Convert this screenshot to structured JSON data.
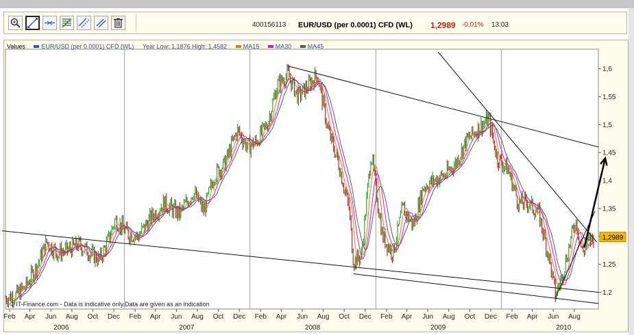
{
  "toolbar": {
    "tools": [
      {
        "name": "zoom-tool",
        "icon": "magnifier-icon"
      },
      {
        "name": "trendline-tool",
        "icon": "trendline-icon",
        "active": true
      },
      {
        "name": "horizontal-line-tool",
        "icon": "horizontal-line-icon"
      },
      {
        "name": "fibonacci-tool",
        "icon": "fibonacci-icon"
      },
      {
        "name": "channel-tool",
        "icon": "channel-icon"
      },
      {
        "name": "parallel-line-tool",
        "icon": "parallel-line-icon"
      },
      {
        "name": "delete-tool",
        "icon": "trash-icon"
      }
    ],
    "symbol_code": "400156113",
    "symbol_name": "EUR/USD (per 0.0001) CFD (WL)",
    "last_price": "1,2989",
    "change": "-0,01%",
    "time": "13:03"
  },
  "legend": {
    "values_label": "Values",
    "instrument": "EUR/USD (per 0.0001) CFD (WL)",
    "year_range": "Year Low: 1,1876 High: 1,4582",
    "ma15": "MA15",
    "ma30": "MA30",
    "ma45": "MA45"
  },
  "credit": "© IT-Finance.com - Data is indicative only.Data are given as an indication",
  "colors": {
    "price_up": "#19a319",
    "price_down": "#b0161c",
    "ma15": "#e07a20",
    "ma30": "#d319c8",
    "ma45": "#5a5a5a",
    "price_tag": "#f5b800",
    "frame_bg": "#fefcea"
  },
  "chart_data": {
    "type": "line",
    "series_type": "ohlc-bars",
    "y_ticks": [
      "1,2",
      "1,25",
      "1,3",
      "1,35",
      "1,4",
      "1,45",
      "1,5",
      "1,55",
      "1,6"
    ],
    "ylim": [
      1.17,
      1.635
    ],
    "x_month_labels": [
      "Feb",
      "Apr",
      "Jun",
      "Aug",
      "Oct",
      "Dec",
      "Feb",
      "Apr",
      "Jun",
      "Aug",
      "Oct",
      "Dec",
      "Feb",
      "Apr",
      "Jun",
      "Aug",
      "Oct",
      "Dec",
      "Feb",
      "Apr",
      "Jun",
      "Aug",
      "Oct",
      "Dec",
      "Feb",
      "Apr",
      "Jun",
      "Aug"
    ],
    "x_year_labels": [
      {
        "label": "2006",
        "date": "2006-07-01"
      },
      {
        "label": "2007",
        "date": "2007-07-01"
      },
      {
        "label": "2008",
        "date": "2008-07-01"
      },
      {
        "label": "2009",
        "date": "2009-07-01"
      },
      {
        "label": "2010",
        "date": "2010-07-01"
      }
    ],
    "x_start": "2006-01-20",
    "x_end": "2010-10-10",
    "gridlines_at": [
      "2007-01-01",
      "2008-01-01",
      "2009-01-01",
      "2010-01-01"
    ],
    "price_path": [
      [
        "2006-01-20",
        1.19
      ],
      [
        "2006-02-20",
        1.195
      ],
      [
        "2006-03-20",
        1.21
      ],
      [
        "2006-04-20",
        1.245
      ],
      [
        "2006-05-20",
        1.29
      ],
      [
        "2006-06-20",
        1.27
      ],
      [
        "2006-07-20",
        1.275
      ],
      [
        "2006-08-20",
        1.285
      ],
      [
        "2006-09-20",
        1.272
      ],
      [
        "2006-10-20",
        1.258
      ],
      [
        "2006-11-10",
        1.285
      ],
      [
        "2006-12-05",
        1.33
      ],
      [
        "2007-01-10",
        1.305
      ],
      [
        "2007-02-10",
        1.3
      ],
      [
        "2007-03-15",
        1.33
      ],
      [
        "2007-04-25",
        1.36
      ],
      [
        "2007-06-10",
        1.34
      ],
      [
        "2007-07-20",
        1.38
      ],
      [
        "2007-08-20",
        1.345
      ],
      [
        "2007-09-20",
        1.41
      ],
      [
        "2007-10-20",
        1.43
      ],
      [
        "2007-11-25",
        1.49
      ],
      [
        "2007-12-25",
        1.46
      ],
      [
        "2008-01-20",
        1.47
      ],
      [
        "2008-02-20",
        1.5
      ],
      [
        "2008-03-20",
        1.57
      ],
      [
        "2008-04-20",
        1.59
      ],
      [
        "2008-05-20",
        1.55
      ],
      [
        "2008-06-20",
        1.57
      ],
      [
        "2008-07-15",
        1.59
      ],
      [
        "2008-08-15",
        1.49
      ],
      [
        "2008-09-15",
        1.43
      ],
      [
        "2008-10-15",
        1.35
      ],
      [
        "2008-10-28",
        1.255
      ],
      [
        "2008-11-20",
        1.265
      ],
      [
        "2008-12-18",
        1.45
      ],
      [
        "2009-01-20",
        1.3
      ],
      [
        "2009-02-20",
        1.27
      ],
      [
        "2009-03-20",
        1.35
      ],
      [
        "2009-04-20",
        1.32
      ],
      [
        "2009-05-20",
        1.39
      ],
      [
        "2009-06-20",
        1.4
      ],
      [
        "2009-07-20",
        1.41
      ],
      [
        "2009-08-20",
        1.43
      ],
      [
        "2009-09-20",
        1.47
      ],
      [
        "2009-10-20",
        1.49
      ],
      [
        "2009-11-25",
        1.51
      ],
      [
        "2009-12-20",
        1.44
      ],
      [
        "2010-01-20",
        1.42
      ],
      [
        "2010-02-20",
        1.36
      ],
      [
        "2010-03-20",
        1.36
      ],
      [
        "2010-04-20",
        1.34
      ],
      [
        "2010-05-20",
        1.26
      ],
      [
        "2010-06-07",
        1.195
      ],
      [
        "2010-06-25",
        1.225
      ],
      [
        "2010-07-20",
        1.29
      ],
      [
        "2010-08-05",
        1.33
      ],
      [
        "2010-08-25",
        1.27
      ],
      [
        "2010-09-10",
        1.29
      ],
      [
        "2010-09-28",
        1.3
      ]
    ],
    "trendlines": [
      {
        "name": "upper-resistance",
        "from": [
          "2008-04-20",
          1.605
        ],
        "to": [
          "2010-10-10",
          1.46
        ]
      },
      {
        "name": "lower-support-2006",
        "from": [
          "2006-01-10",
          1.31
        ],
        "to": [
          "2010-10-10",
          1.2
        ]
      },
      {
        "name": "lower-support-2008",
        "from": [
          "2008-10-28",
          1.233
        ],
        "to": [
          "2010-10-10",
          1.18
        ]
      },
      {
        "name": "steep-downtrend",
        "from": [
          "2009-07-01",
          1.63
        ],
        "to": [
          "2010-10-05",
          1.29
        ]
      },
      {
        "name": "uptrend-2010",
        "from": [
          "2010-06-07",
          1.19
        ],
        "to": [
          "2010-09-30",
          1.345
        ]
      }
    ],
    "projection_arrow": {
      "from": [
        "2010-08-30",
        1.28
      ],
      "to": [
        "2010-10-30",
        1.44
      ]
    }
  }
}
